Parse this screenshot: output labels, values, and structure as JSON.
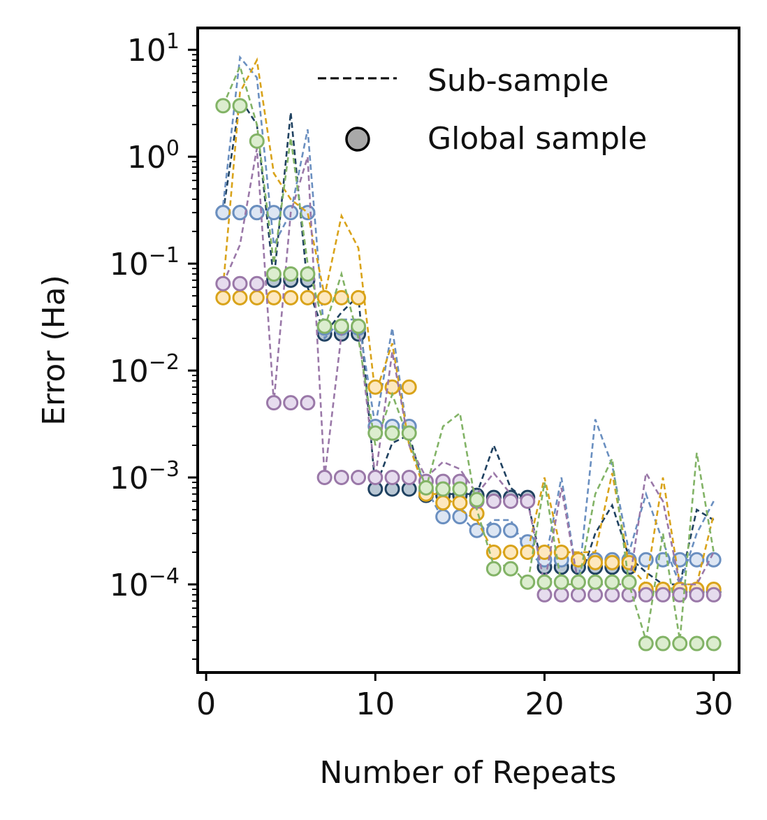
{
  "chart_data": {
    "type": "line",
    "title": "",
    "xlabel": "Number of Repeats",
    "ylabel": "Error (Ha)",
    "xscale": "linear",
    "yscale": "log",
    "xlim": [
      -0.5,
      31.5
    ],
    "ylim": [
      1.5e-05,
      16
    ],
    "x_ticks": [
      0,
      10,
      20,
      30
    ],
    "y_ticks": [
      {
        "base": "10",
        "exp": "1",
        "value": 10
      },
      {
        "base": "10",
        "exp": "0",
        "value": 1
      },
      {
        "base": "10",
        "exp": "−1",
        "value": 0.1
      },
      {
        "base": "10",
        "exp": "−2",
        "value": 0.01
      },
      {
        "base": "10",
        "exp": "−3",
        "value": 0.001
      },
      {
        "base": "10",
        "exp": "−4",
        "value": 0.0001
      }
    ],
    "legend": {
      "position": "top-right",
      "entries": [
        {
          "label": "Sub-sample",
          "style": "dashed-line"
        },
        {
          "label": "Global sample",
          "style": "marker"
        }
      ]
    },
    "x": [
      1,
      2,
      3,
      4,
      5,
      6,
      7,
      8,
      9,
      10,
      11,
      12,
      13,
      14,
      15,
      16,
      17,
      18,
      19,
      20,
      21,
      22,
      23,
      24,
      25,
      26,
      27,
      28,
      29,
      30
    ],
    "series": [
      {
        "name": "dark-navy",
        "color": "#1f4160",
        "fill": "#b9c7d4",
        "sub": [
          0.3,
          3.5,
          2.0,
          0.07,
          2.6,
          0.06,
          0.022,
          0.035,
          0.05,
          0.0008,
          0.0021,
          0.0025,
          0.0007,
          0.0007,
          0.0007,
          0.0007,
          0.002,
          0.0008,
          0.0006,
          0.00012,
          0.0001,
          0.0001,
          0.0003,
          0.00055,
          0.00018,
          0.00013,
          0.0001,
          0.0001,
          0.0005,
          0.0004
        ],
        "global": [
          0.3,
          0.3,
          0.3,
          0.07,
          0.07,
          0.07,
          0.022,
          0.022,
          0.022,
          0.00078,
          0.00078,
          0.00078,
          0.00068,
          0.00068,
          0.00068,
          0.00068,
          0.00065,
          0.00065,
          0.00065,
          0.000145,
          0.000145,
          0.000145,
          0.000145,
          0.000145,
          0.000145,
          8.5e-05,
          8.5e-05,
          8.5e-05,
          8.5e-05,
          8.5e-05
        ]
      },
      {
        "name": "steel-blue",
        "color": "#6a8fc0",
        "fill": "#dde6f3",
        "sub": [
          0.35,
          8.5,
          5.5,
          0.15,
          0.3,
          1.8,
          0.02,
          0.03,
          0.03,
          0.003,
          0.025,
          0.002,
          0.0008,
          0.0004,
          0.00045,
          0.0003,
          0.0004,
          0.0004,
          0.0002,
          0.00015,
          0.001,
          0.0001,
          0.0035,
          0.0013,
          0.0002,
          0.0007,
          0.00025,
          0.0001,
          0.0003,
          0.0006
        ],
        "global": [
          0.3,
          0.3,
          0.3,
          0.3,
          0.3,
          0.3,
          0.025,
          0.025,
          0.025,
          0.003,
          0.003,
          0.003,
          0.00075,
          0.00043,
          0.00043,
          0.00032,
          0.00032,
          0.00032,
          0.00025,
          0.00017,
          0.00017,
          0.00017,
          0.00017,
          0.00017,
          0.00017,
          0.00017,
          0.00017,
          0.00017,
          0.00017,
          0.00017
        ]
      },
      {
        "name": "gold",
        "color": "#d9a31a",
        "fill": "#fde8bf",
        "sub": [
          0.06,
          4.0,
          8.0,
          0.7,
          0.4,
          0.3,
          0.05,
          0.28,
          0.14,
          0.006,
          0.018,
          0.002,
          0.0007,
          0.0007,
          0.0005,
          0.0004,
          0.0002,
          0.0002,
          0.0002,
          0.001,
          0.0002,
          0.0002,
          0.0002,
          0.0011,
          0.00015,
          0.0001,
          0.001,
          0.0001,
          0.0001,
          0.00045
        ],
        "global": [
          0.048,
          0.048,
          0.048,
          0.048,
          0.048,
          0.048,
          0.048,
          0.048,
          0.048,
          0.007,
          0.007,
          0.007,
          0.0007,
          0.00058,
          0.00058,
          0.00046,
          0.0002,
          0.0002,
          0.0002,
          0.0002,
          0.0002,
          0.00017,
          0.00016,
          0.00016,
          0.00016,
          9e-05,
          9e-05,
          9e-05,
          9e-05,
          9e-05
        ]
      },
      {
        "name": "purple",
        "color": "#9a78a8",
        "fill": "#e6dcee",
        "sub": [
          0.065,
          0.15,
          1.2,
          0.005,
          0.3,
          1.0,
          0.001,
          0.022,
          0.025,
          0.001,
          0.015,
          0.002,
          0.001,
          0.0014,
          0.0012,
          0.0007,
          0.0011,
          0.0007,
          0.0006,
          0.0001,
          0.0008,
          0.0001,
          0.0001,
          0.0001,
          0.0001,
          0.0011,
          0.0006,
          0.0001,
          0.0001,
          0.0002
        ],
        "global": [
          0.065,
          0.065,
          0.065,
          0.005,
          0.005,
          0.005,
          0.001,
          0.001,
          0.001,
          0.001,
          0.001,
          0.001,
          0.00092,
          0.00092,
          0.00092,
          0.0006,
          0.0006,
          0.0006,
          0.0006,
          8e-05,
          8e-05,
          8e-05,
          8e-05,
          8e-05,
          8e-05,
          8e-05,
          8e-05,
          8e-05,
          8e-05,
          8e-05
        ]
      },
      {
        "name": "green",
        "color": "#82b366",
        "fill": "#dcedcf",
        "sub": [
          3.0,
          7.0,
          2.0,
          0.1,
          1.5,
          0.1,
          0.025,
          0.08,
          0.02,
          0.002,
          0.006,
          0.0022,
          0.0008,
          0.003,
          0.004,
          0.0005,
          0.00015,
          0.00015,
          0.0001,
          0.0009,
          0.0001,
          0.0001,
          0.0007,
          0.0015,
          0.0001,
          3e-05,
          0.0003,
          3e-05,
          0.0017,
          0.0002
        ],
        "global": [
          3.0,
          3.0,
          1.4,
          0.08,
          0.08,
          0.08,
          0.026,
          0.026,
          0.026,
          0.0026,
          0.0026,
          0.0026,
          0.0008,
          0.00078,
          0.00078,
          0.00062,
          0.00014,
          0.00014,
          0.000105,
          0.000105,
          0.000105,
          0.000105,
          0.000105,
          0.000105,
          0.000105,
          2.8e-05,
          2.8e-05,
          2.8e-05,
          2.8e-05,
          2.8e-05
        ]
      }
    ]
  }
}
